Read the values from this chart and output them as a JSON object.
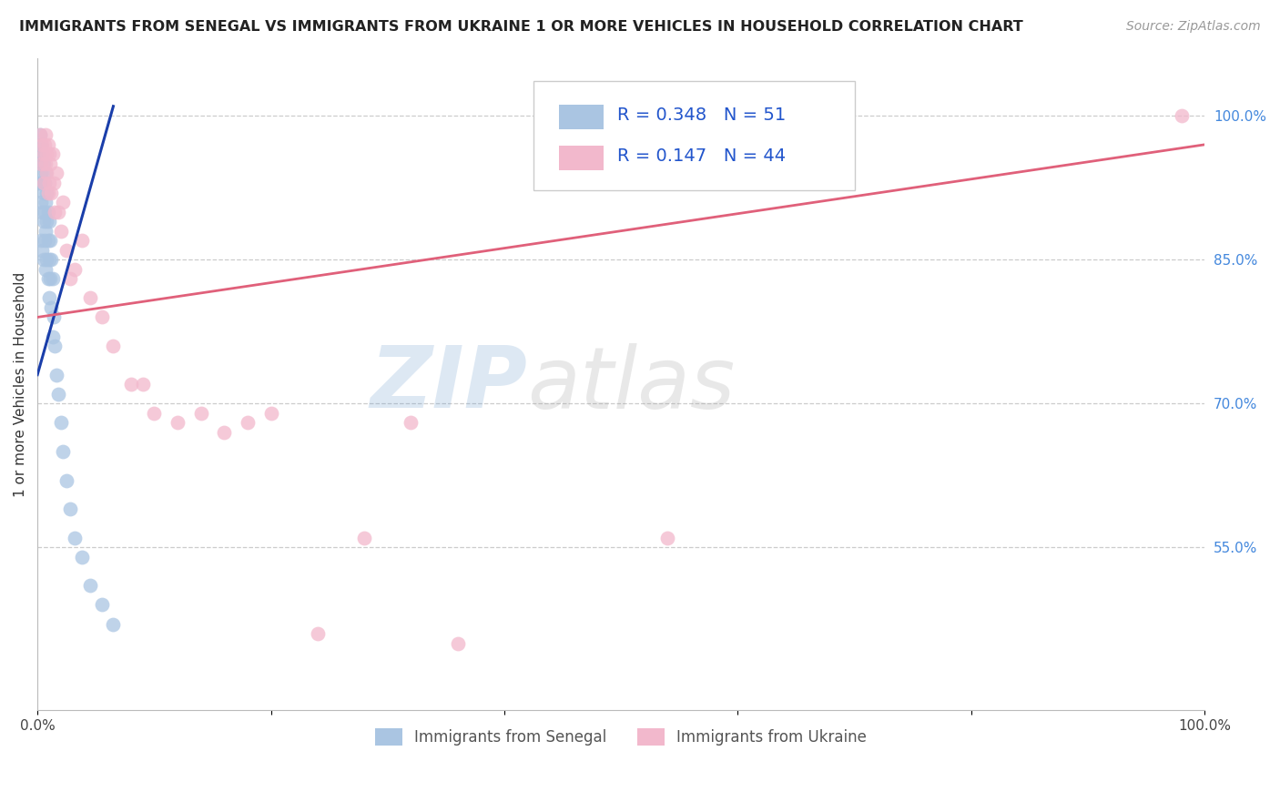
{
  "title": "IMMIGRANTS FROM SENEGAL VS IMMIGRANTS FROM UKRAINE 1 OR MORE VEHICLES IN HOUSEHOLD CORRELATION CHART",
  "source": "Source: ZipAtlas.com",
  "ylabel": "1 or more Vehicles in Household",
  "xlim": [
    0.0,
    1.0
  ],
  "ylim": [
    0.38,
    1.06
  ],
  "x_ticks": [
    0.0,
    0.2,
    0.4,
    0.6,
    0.8,
    1.0
  ],
  "x_tick_labels": [
    "0.0%",
    "",
    "",
    "",
    "",
    "100.0%"
  ],
  "y_ticks_right": [
    1.0,
    0.85,
    0.7,
    0.55
  ],
  "y_tick_labels_right": [
    "100.0%",
    "85.0%",
    "70.0%",
    "55.0%"
  ],
  "legend_labels": [
    "Immigrants from Senegal",
    "Immigrants from Ukraine"
  ],
  "senegal_color": "#aac5e2",
  "ukraine_color": "#f2b8cc",
  "senegal_line_color": "#1a3eaa",
  "ukraine_line_color": "#e0607a",
  "R_senegal": 0.348,
  "N_senegal": 51,
  "R_ukraine": 0.147,
  "N_ukraine": 44,
  "watermark_zip": "ZIP",
  "watermark_atlas": "atlas",
  "background_color": "#ffffff",
  "grid_color": "#cccccc",
  "senegal_x": [
    0.001,
    0.001,
    0.002,
    0.002,
    0.003,
    0.003,
    0.003,
    0.003,
    0.004,
    0.004,
    0.004,
    0.004,
    0.005,
    0.005,
    0.005,
    0.005,
    0.006,
    0.006,
    0.006,
    0.007,
    0.007,
    0.007,
    0.007,
    0.008,
    0.008,
    0.008,
    0.009,
    0.009,
    0.009,
    0.01,
    0.01,
    0.01,
    0.011,
    0.011,
    0.012,
    0.012,
    0.013,
    0.013,
    0.014,
    0.015,
    0.016,
    0.018,
    0.02,
    0.022,
    0.025,
    0.028,
    0.032,
    0.038,
    0.045,
    0.055,
    0.065
  ],
  "senegal_y": [
    0.96,
    0.93,
    0.98,
    0.95,
    0.97,
    0.94,
    0.91,
    0.87,
    0.96,
    0.93,
    0.9,
    0.86,
    0.95,
    0.92,
    0.89,
    0.85,
    0.93,
    0.9,
    0.87,
    0.94,
    0.91,
    0.88,
    0.84,
    0.92,
    0.89,
    0.85,
    0.9,
    0.87,
    0.83,
    0.89,
    0.85,
    0.81,
    0.87,
    0.83,
    0.85,
    0.8,
    0.83,
    0.77,
    0.79,
    0.76,
    0.73,
    0.71,
    0.68,
    0.65,
    0.62,
    0.59,
    0.56,
    0.54,
    0.51,
    0.49,
    0.47
  ],
  "ukraine_x": [
    0.002,
    0.003,
    0.004,
    0.005,
    0.005,
    0.006,
    0.007,
    0.007,
    0.008,
    0.008,
    0.009,
    0.009,
    0.01,
    0.01,
    0.011,
    0.012,
    0.013,
    0.014,
    0.015,
    0.016,
    0.018,
    0.02,
    0.022,
    0.025,
    0.028,
    0.032,
    0.038,
    0.045,
    0.055,
    0.065,
    0.08,
    0.09,
    0.1,
    0.12,
    0.14,
    0.16,
    0.18,
    0.2,
    0.24,
    0.28,
    0.32,
    0.36,
    0.54,
    0.98
  ],
  "ukraine_y": [
    0.98,
    0.95,
    0.97,
    0.96,
    0.93,
    0.97,
    0.98,
    0.95,
    0.96,
    0.94,
    0.92,
    0.97,
    0.96,
    0.93,
    0.95,
    0.92,
    0.96,
    0.93,
    0.9,
    0.94,
    0.9,
    0.88,
    0.91,
    0.86,
    0.83,
    0.84,
    0.87,
    0.81,
    0.79,
    0.76,
    0.72,
    0.72,
    0.69,
    0.68,
    0.69,
    0.67,
    0.68,
    0.69,
    0.46,
    0.56,
    0.68,
    0.45,
    0.56,
    1.0
  ],
  "senegal_line_x": [
    0.0,
    0.065
  ],
  "senegal_line_y": [
    0.73,
    1.01
  ],
  "ukraine_line_x": [
    0.0,
    1.0
  ],
  "ukraine_line_y": [
    0.79,
    0.97
  ]
}
